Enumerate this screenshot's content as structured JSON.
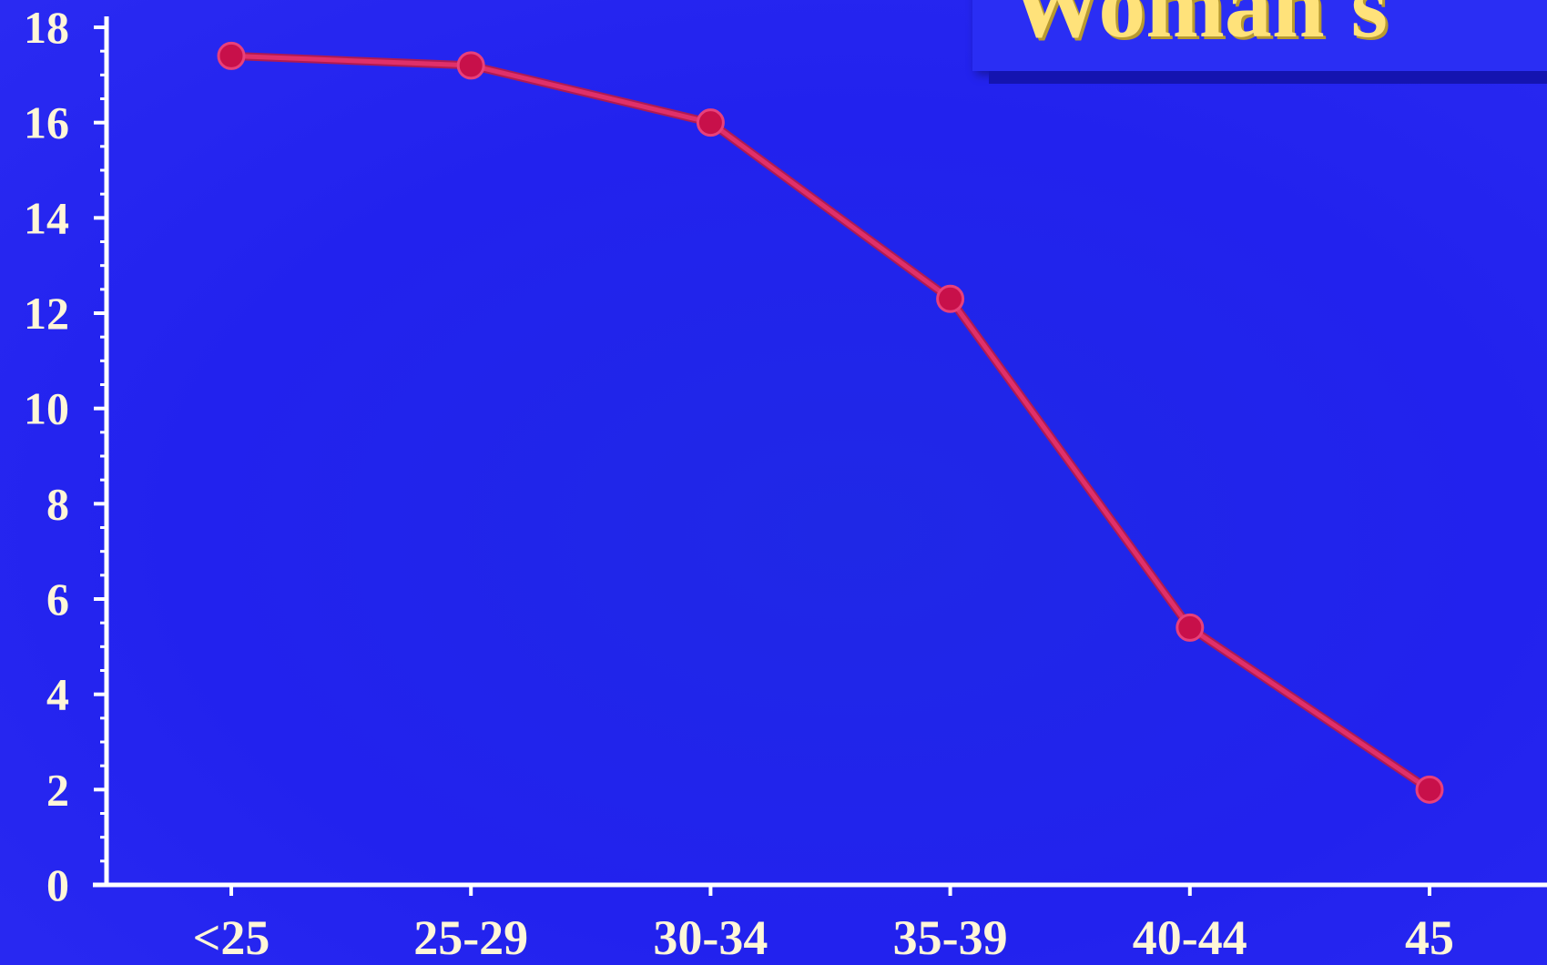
{
  "slide": {
    "title": "Woman's"
  },
  "colors": {
    "background": "#2222ee",
    "axis": "#ffffff",
    "line": "#e0306a",
    "marker": "#c8104a",
    "text": "#fff6d8",
    "title": "#ffe27a"
  },
  "chart_data": {
    "type": "line",
    "title": "",
    "xlabel": "",
    "ylabel": "",
    "categories": [
      "<25",
      "25-29",
      "30-34",
      "35-39",
      "40-44",
      "45"
    ],
    "series": [
      {
        "values": [
          17.4,
          17.2,
          16.0,
          12.3,
          5.4,
          2.0
        ]
      }
    ],
    "ylim": [
      0,
      18
    ],
    "yticks": [
      "0",
      "2",
      "4",
      "6",
      "8",
      "10",
      "12",
      "14",
      "16",
      "18"
    ],
    "grid": false,
    "legend": "none"
  }
}
